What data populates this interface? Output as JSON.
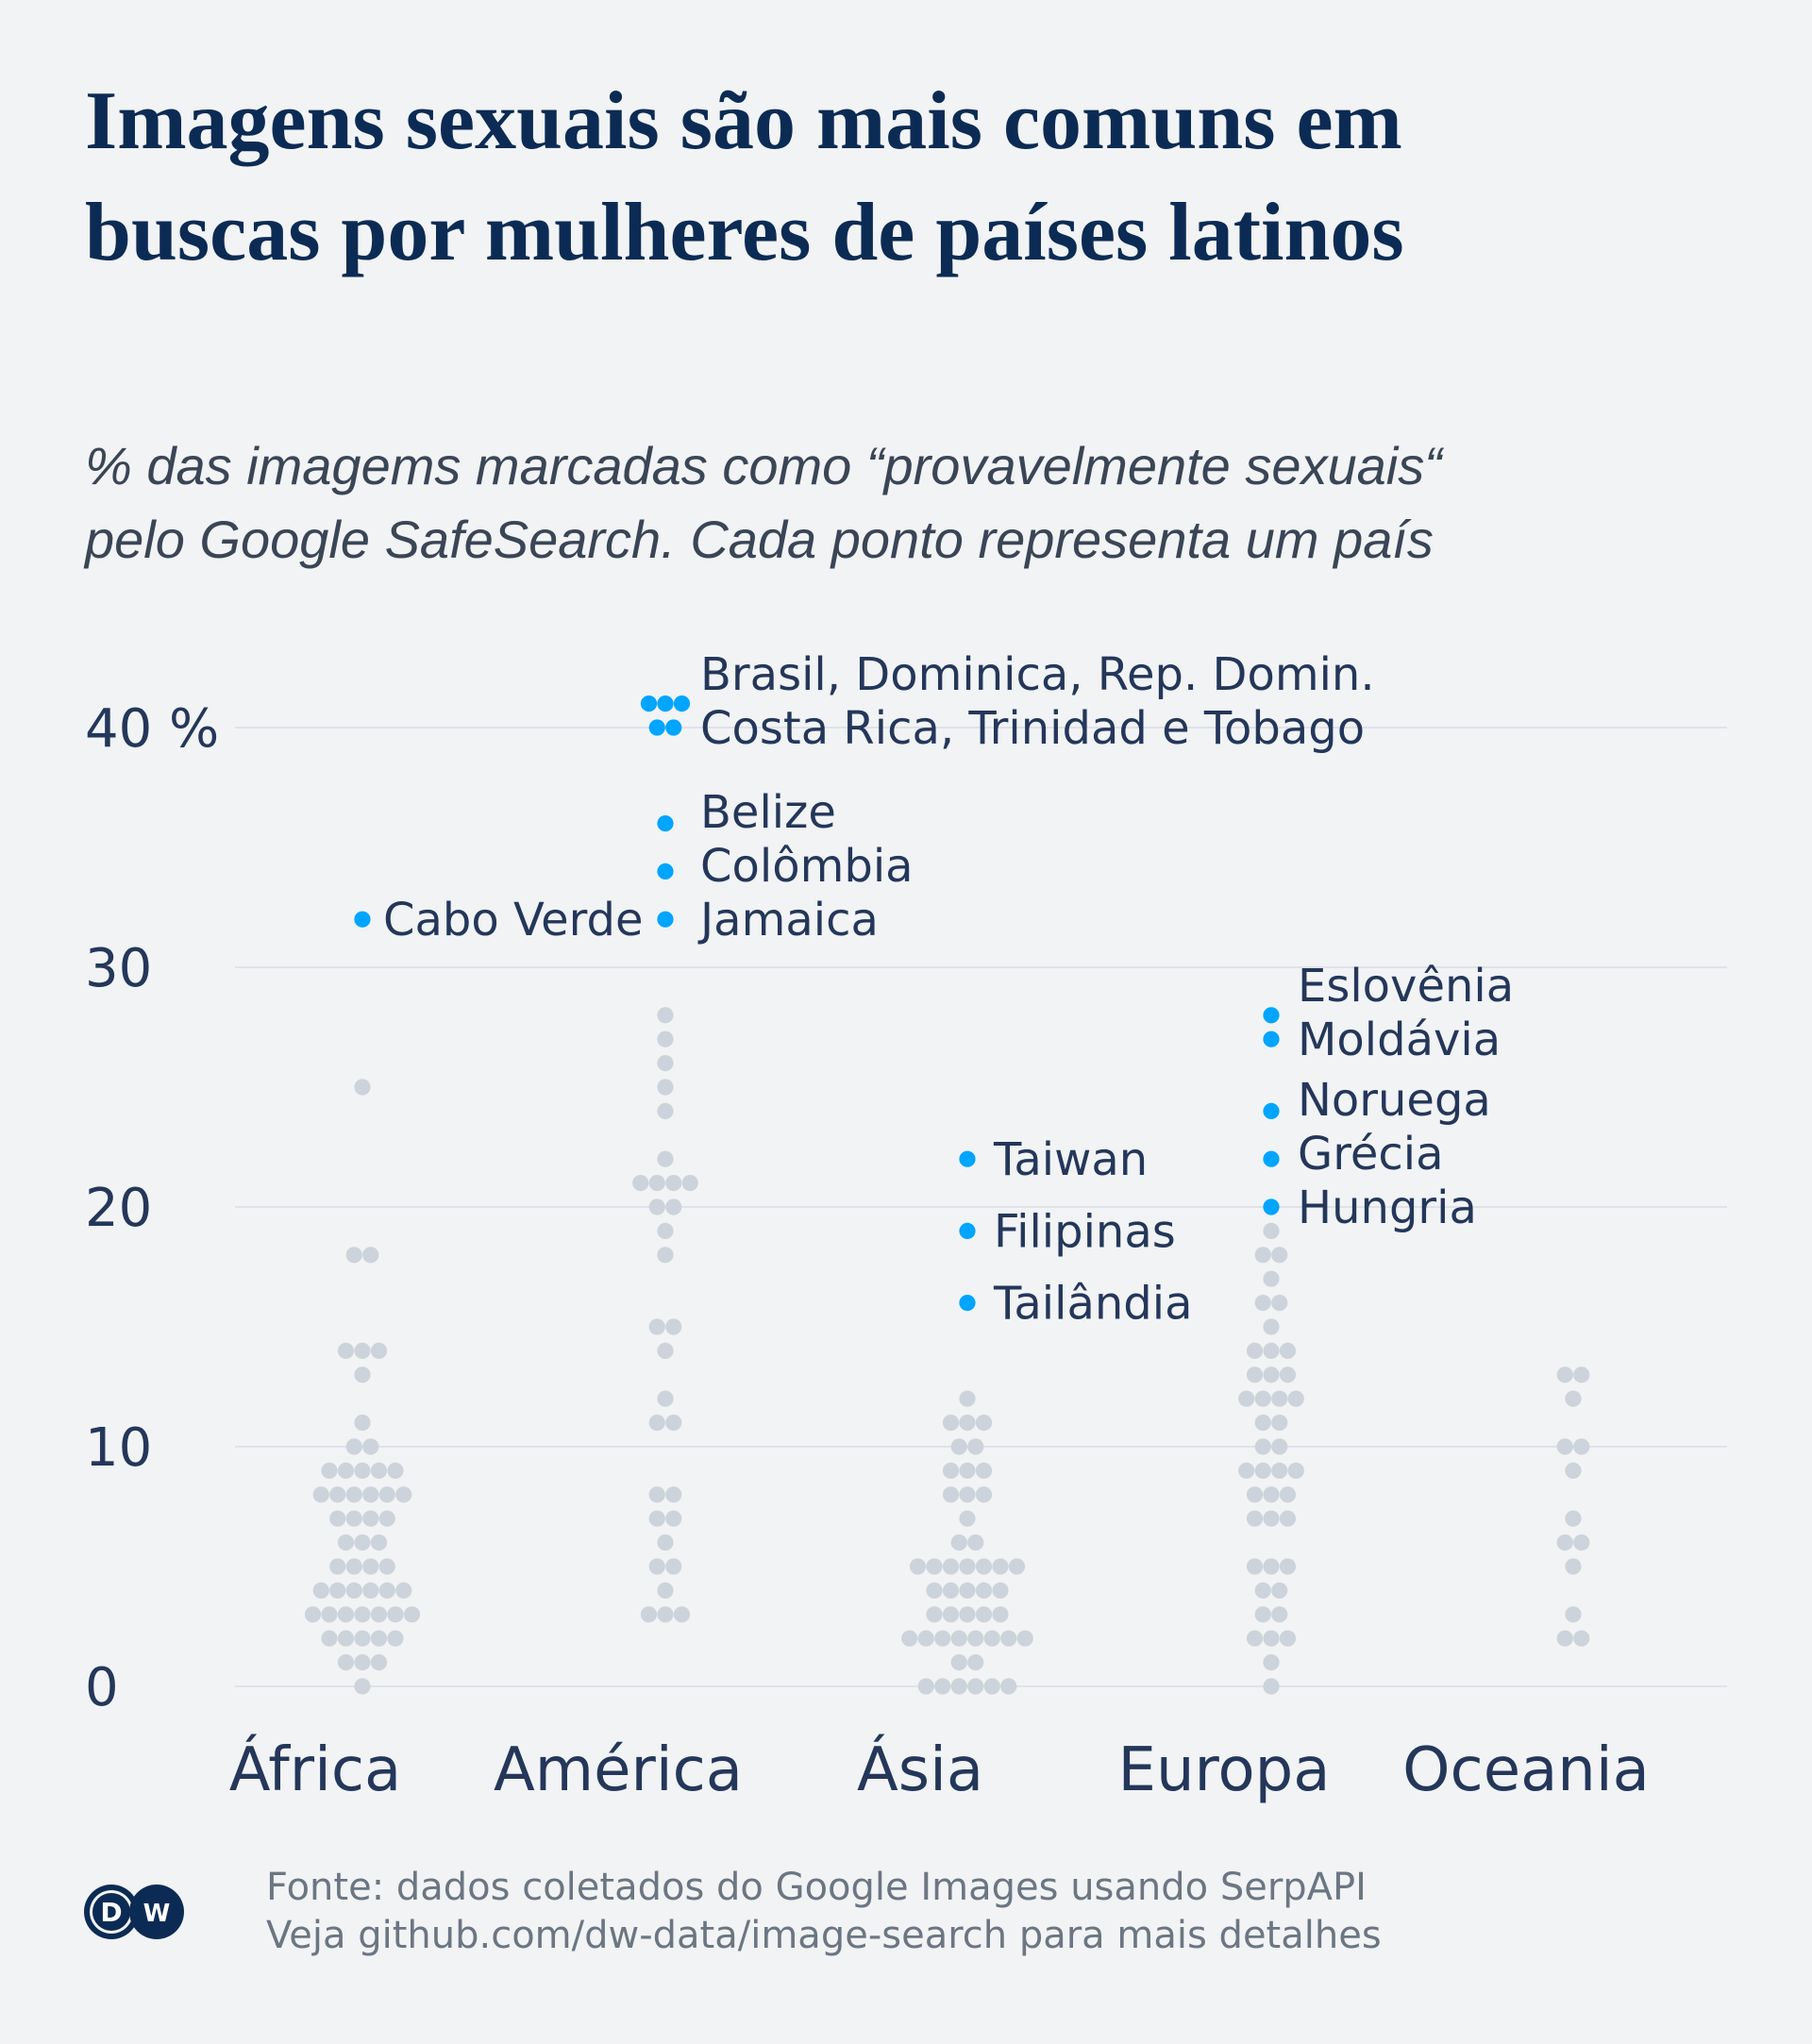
{
  "title": [
    "Imagens sexuais são mais comuns em",
    "buscas por mulheres de países latinos"
  ],
  "subtitle": [
    "% das imagems marcadas como “provavelmente sexuais“",
    "pelo Google SafeSearch. Cada ponto representa um país"
  ],
  "footer": {
    "source": "Fonte: dados coletados do Google Images usando SerpAPI",
    "details": "Veja github.com/dw-data/image-search para mais detalhes"
  },
  "logo_text": "DW",
  "colors": {
    "background": "#f1f3f5",
    "highlight": "#00a5ff",
    "dot": "#cdd3da",
    "grid": "#d9dde3",
    "text": "#24375a"
  },
  "chart_data": {
    "type": "beeswarm",
    "ylim": [
      0,
      42
    ],
    "yticks": [
      {
        "value": 0,
        "label": "0"
      },
      {
        "value": 10,
        "label": "10"
      },
      {
        "value": 20,
        "label": "20"
      },
      {
        "value": 30,
        "label": "30"
      },
      {
        "value": 40,
        "label": "40 %"
      }
    ],
    "grid": true,
    "categories": [
      {
        "name": "África",
        "values": [
          25,
          18,
          18,
          14,
          14,
          14,
          13,
          11,
          10,
          10,
          9,
          9,
          9,
          9,
          9,
          8,
          8,
          8,
          8,
          8,
          8,
          7,
          7,
          7,
          7,
          6,
          6,
          6,
          5,
          5,
          5,
          5,
          4,
          4,
          4,
          4,
          4,
          4,
          3,
          3,
          3,
          3,
          3,
          3,
          3,
          2,
          2,
          2,
          2,
          2,
          1,
          1,
          1,
          0
        ],
        "highlights": [
          {
            "label": "Cabo Verde",
            "values": [
              32
            ]
          }
        ]
      },
      {
        "name": "América",
        "values": [
          28,
          27,
          26,
          25,
          24,
          22,
          21,
          21,
          21,
          21,
          20,
          20,
          19,
          18,
          15,
          15,
          14,
          12,
          11,
          11,
          8,
          8,
          7,
          7,
          6,
          5,
          5,
          4,
          3,
          3,
          3
        ],
        "highlights": [
          {
            "label": "Brasil, Dominica, Rep. Domin.",
            "values": [
              41,
              41,
              41
            ]
          },
          {
            "label": "Costa Rica, Trinidad e Tobago",
            "values": [
              40,
              40
            ]
          },
          {
            "label": "Belize",
            "values": [
              36
            ]
          },
          {
            "label": "Colômbia",
            "values": [
              34
            ]
          },
          {
            "label": "Jamaica",
            "values": [
              32
            ]
          }
        ]
      },
      {
        "name": "Ásia",
        "values": [
          12,
          11,
          11,
          11,
          10,
          10,
          9,
          9,
          9,
          8,
          8,
          8,
          7,
          6,
          6,
          5,
          5,
          5,
          5,
          5,
          5,
          5,
          4,
          4,
          4,
          4,
          4,
          3,
          3,
          3,
          3,
          3,
          2,
          2,
          2,
          2,
          2,
          2,
          2,
          2,
          1,
          1,
          0,
          0,
          0,
          0,
          0,
          0
        ],
        "highlights": [
          {
            "label": "Taiwan",
            "values": [
              22
            ]
          },
          {
            "label": "Filipinas",
            "values": [
              19
            ]
          },
          {
            "label": "Tailândia",
            "values": [
              16
            ]
          }
        ]
      },
      {
        "name": "Europa",
        "values": [
          19,
          18,
          18,
          17,
          16,
          16,
          15,
          14,
          14,
          14,
          13,
          13,
          13,
          12,
          12,
          12,
          12,
          11,
          11,
          10,
          10,
          9,
          9,
          9,
          9,
          8,
          8,
          8,
          7,
          7,
          7,
          5,
          5,
          5,
          4,
          4,
          3,
          3,
          2,
          2,
          2,
          1,
          0
        ],
        "highlights": [
          {
            "label": "Eslovênia",
            "values": [
              28
            ]
          },
          {
            "label": "Moldávia",
            "values": [
              27
            ]
          },
          {
            "label": "Noruega",
            "values": [
              24
            ]
          },
          {
            "label": "Grécia",
            "values": [
              22
            ]
          },
          {
            "label": "Hungria",
            "values": [
              20
            ]
          }
        ]
      },
      {
        "name": "Oceania",
        "values": [
          13,
          13,
          12,
          10,
          10,
          9,
          7,
          6,
          6,
          5,
          3,
          2,
          2
        ],
        "highlights": []
      }
    ]
  }
}
